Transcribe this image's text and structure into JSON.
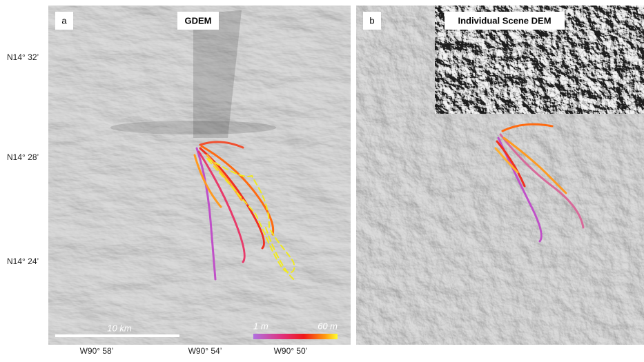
{
  "panels": [
    {
      "label": "a",
      "title": "GDEM"
    },
    {
      "label": "b",
      "title": "Individual Scene DEM"
    }
  ],
  "latitude_labels": [
    "N14° 32’",
    "N14° 28’",
    "N14° 24’"
  ],
  "longitude_labels": [
    "W90° 58’",
    "W90° 54’",
    "W90° 50’"
  ],
  "scale_bar": {
    "label": "10 km"
  },
  "colorbar": {
    "min_label": "1 m",
    "max_label": "60 m"
  }
}
